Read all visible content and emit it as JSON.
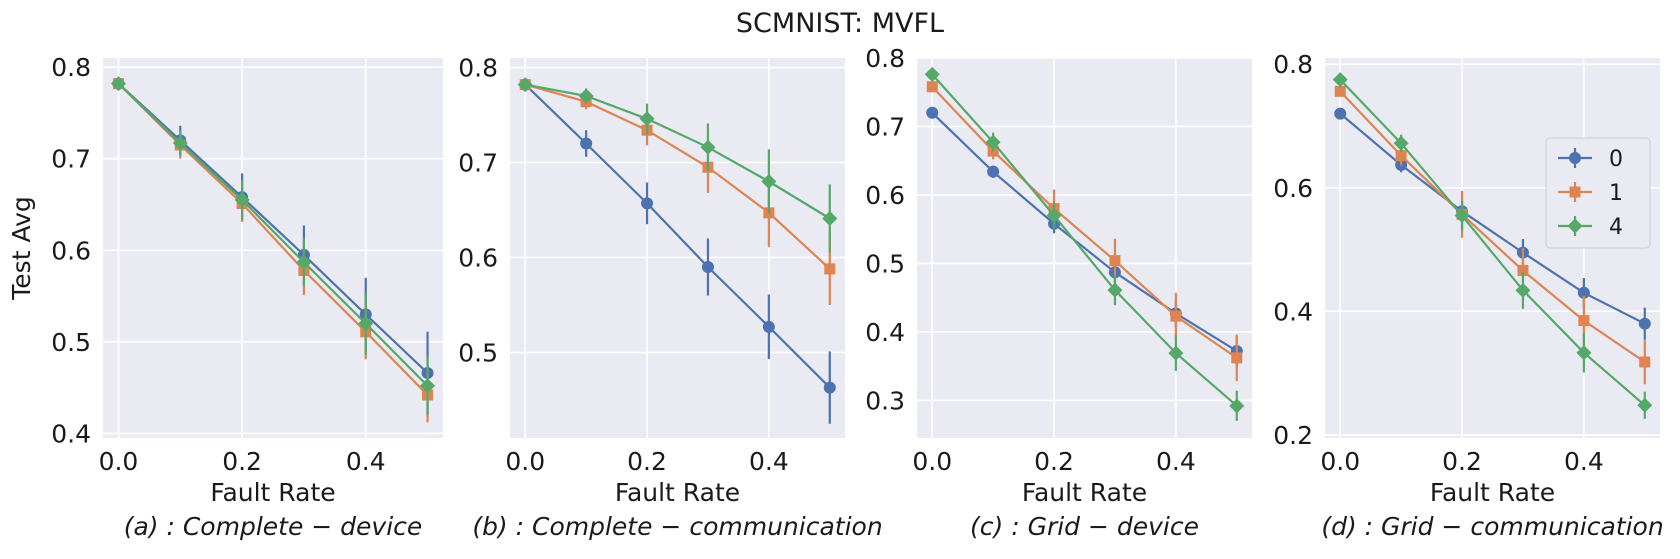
{
  "figure": {
    "title": "SCMNIST: MVFL"
  },
  "colors": {
    "background": "#eaeaf2",
    "grid": "#ffffff",
    "series": {
      "0": "#4c72b0",
      "1": "#dd8452",
      "4": "#55a868"
    }
  },
  "legend": {
    "entries": [
      {
        "label": "0",
        "marker": "circle"
      },
      {
        "label": "1",
        "marker": "square"
      },
      {
        "label": "4",
        "marker": "diamond"
      }
    ]
  },
  "chart_data": [
    {
      "type": "line",
      "caption": "(a) : Complete − device",
      "xlabel": "Fault Rate",
      "ylabel": "Test Avg",
      "xlim": [
        -0.025,
        0.525
      ],
      "ylim": [
        0.395,
        0.81
      ],
      "xticks": [
        0.0,
        0.2,
        0.4
      ],
      "xtick_labels": [
        "0.0",
        "0.2",
        "0.4"
      ],
      "yticks": [
        0.4,
        0.5,
        0.6,
        0.7,
        0.8
      ],
      "ytick_labels": [
        "0.4",
        "0.5",
        "0.6",
        "0.7",
        "0.8"
      ],
      "legend": false,
      "x": [
        0.0,
        0.1,
        0.2,
        0.3,
        0.4,
        0.5
      ],
      "series": [
        {
          "name": "0",
          "values": [
            0.782,
            0.72,
            0.658,
            0.595,
            0.53,
            0.466
          ],
          "errors": [
            0.003,
            0.016,
            0.026,
            0.032,
            0.04,
            0.045
          ]
        },
        {
          "name": "1",
          "values": [
            0.782,
            0.715,
            0.651,
            0.578,
            0.511,
            0.442
          ],
          "errors": [
            0.003,
            0.015,
            0.02,
            0.027,
            0.03,
            0.03
          ]
        },
        {
          "name": "4",
          "values": [
            0.782,
            0.717,
            0.655,
            0.587,
            0.52,
            0.452
          ],
          "errors": [
            0.003,
            0.014,
            0.022,
            0.026,
            0.034,
            0.032
          ]
        }
      ]
    },
    {
      "type": "line",
      "caption": "(b) : Complete − communication",
      "xlabel": "Fault Rate",
      "ylabel": "",
      "xlim": [
        -0.025,
        0.525
      ],
      "ylim": [
        0.41,
        0.81
      ],
      "xticks": [
        0.0,
        0.2,
        0.4
      ],
      "xtick_labels": [
        "0.0",
        "0.2",
        "0.4"
      ],
      "yticks": [
        0.5,
        0.6,
        0.7,
        0.8
      ],
      "ytick_labels": [
        "0.5",
        "0.6",
        "0.7",
        "0.8"
      ],
      "legend": false,
      "x": [
        0.0,
        0.1,
        0.2,
        0.3,
        0.4,
        0.5
      ],
      "series": [
        {
          "name": "0",
          "values": [
            0.782,
            0.72,
            0.657,
            0.59,
            0.527,
            0.463
          ],
          "errors": [
            0.003,
            0.014,
            0.022,
            0.03,
            0.034,
            0.038
          ]
        },
        {
          "name": "1",
          "values": [
            0.782,
            0.764,
            0.734,
            0.695,
            0.647,
            0.588
          ],
          "errors": [
            0.003,
            0.008,
            0.016,
            0.027,
            0.036,
            0.038
          ]
        },
        {
          "name": "4",
          "values": [
            0.782,
            0.77,
            0.746,
            0.716,
            0.68,
            0.641
          ],
          "errors": [
            0.003,
            0.008,
            0.016,
            0.025,
            0.034,
            0.036
          ]
        }
      ]
    },
    {
      "type": "line",
      "caption": "(c) : Grid − device",
      "xlabel": "Fault Rate",
      "ylabel": "",
      "xlim": [
        -0.025,
        0.525
      ],
      "ylim": [
        0.245,
        0.8
      ],
      "xticks": [
        0.0,
        0.2,
        0.4
      ],
      "xtick_labels": [
        "0.0",
        "0.2",
        "0.4"
      ],
      "yticks": [
        0.3,
        0.4,
        0.5,
        0.6,
        0.7,
        0.8
      ],
      "ytick_labels": [
        "0.3",
        "0.4",
        "0.5",
        "0.6",
        "0.7",
        "0.8"
      ],
      "legend": false,
      "x": [
        0.0,
        0.1,
        0.2,
        0.3,
        0.4,
        0.5
      ],
      "series": [
        {
          "name": "0",
          "values": [
            0.72,
            0.634,
            0.558,
            0.487,
            0.427,
            0.372
          ],
          "errors": [
            0.003,
            0.009,
            0.014,
            0.016,
            0.02,
            0.022
          ]
        },
        {
          "name": "1",
          "values": [
            0.758,
            0.664,
            0.58,
            0.504,
            0.423,
            0.362
          ],
          "errors": [
            0.003,
            0.012,
            0.028,
            0.032,
            0.034,
            0.034
          ]
        },
        {
          "name": "4",
          "values": [
            0.776,
            0.677,
            0.57,
            0.461,
            0.369,
            0.292
          ],
          "errors": [
            0.003,
            0.014,
            0.02,
            0.022,
            0.026,
            0.022
          ]
        }
      ]
    },
    {
      "type": "line",
      "caption": "(d) : Grid − communication",
      "xlabel": "Fault Rate",
      "ylabel": "",
      "xlim": [
        -0.025,
        0.525
      ],
      "ylim": [
        0.195,
        0.81
      ],
      "xticks": [
        0.0,
        0.2,
        0.4
      ],
      "xtick_labels": [
        "0.0",
        "0.2",
        "0.4"
      ],
      "yticks": [
        0.2,
        0.4,
        0.6,
        0.8
      ],
      "ytick_labels": [
        "0.2",
        "0.4",
        "0.6",
        "0.8"
      ],
      "legend": true,
      "legend_loc": "center-right",
      "x": [
        0.0,
        0.1,
        0.2,
        0.3,
        0.4,
        0.5
      ],
      "series": [
        {
          "name": "0",
          "values": [
            0.72,
            0.637,
            0.562,
            0.495,
            0.43,
            0.38
          ],
          "errors": [
            0.004,
            0.012,
            0.016,
            0.022,
            0.024,
            0.026
          ]
        },
        {
          "name": "1",
          "values": [
            0.756,
            0.652,
            0.557,
            0.466,
            0.385,
            0.318
          ],
          "errors": [
            0.004,
            0.016,
            0.038,
            0.036,
            0.04,
            0.036
          ]
        },
        {
          "name": "4",
          "values": [
            0.775,
            0.672,
            0.555,
            0.434,
            0.333,
            0.248
          ],
          "errors": [
            0.004,
            0.014,
            0.024,
            0.03,
            0.032,
            0.022
          ]
        }
      ]
    }
  ]
}
